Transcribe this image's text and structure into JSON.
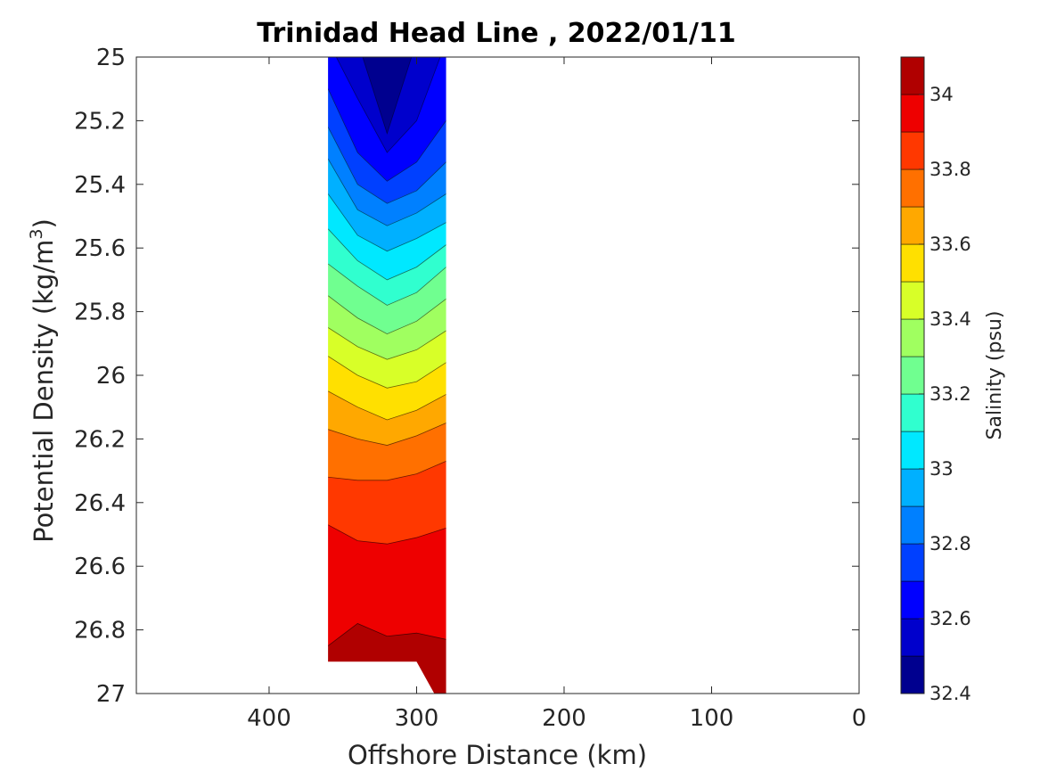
{
  "chart_data": {
    "type": "contour",
    "title": "Trinidad Head Line , 2022/01/11",
    "xlabel": "Offshore Distance (km)",
    "ylabel_main": "Potential Density (kg/m",
    "ylabel_sup": "3",
    "ylabel_close": ")",
    "xlim": [
      490,
      0
    ],
    "ylim": [
      25,
      27
    ],
    "x_reversed": true,
    "y_reversed": true,
    "x_ticks": [
      400,
      300,
      200,
      100,
      0
    ],
    "x_tick_labels": [
      "400",
      "300",
      "200",
      "100",
      "0"
    ],
    "y_ticks": [
      25,
      25.2,
      25.4,
      25.6,
      25.8,
      26,
      26.2,
      26.4,
      26.6,
      26.8,
      27
    ],
    "y_tick_labels": [
      "25",
      "25.2",
      "25.4",
      "25.6",
      "25.8",
      "26",
      "26.2",
      "26.4",
      "26.6",
      "26.8",
      "27"
    ],
    "grid": false,
    "colorbar": {
      "label": "Salinity (psu)",
      "range": [
        32.4,
        34.1
      ],
      "step": 0.1,
      "tick_values": [
        32.4,
        32.6,
        32.8,
        33,
        33.2,
        33.4,
        33.6,
        33.8,
        34
      ],
      "tick_labels": [
        "32.4",
        "32.6",
        "32.8",
        "33",
        "33.2",
        "33.4",
        "33.6",
        "33.8",
        "34"
      ],
      "colors": [
        "#00008f",
        "#0000cc",
        "#0000ff",
        "#0040ff",
        "#0080ff",
        "#00b0ff",
        "#00e8ff",
        "#30ffcf",
        "#70ff90",
        "#a0ff60",
        "#d8ff28",
        "#ffe000",
        "#ffa800",
        "#ff7000",
        "#ff3800",
        "#ee0000",
        "#b00000"
      ]
    },
    "section": {
      "x_range": [
        280,
        360
      ],
      "stations_x": [
        360,
        340,
        320,
        300,
        280
      ],
      "bottom_boundary": [
        [
          360,
          26.9
        ],
        [
          300,
          26.9
        ],
        [
          288,
          27
        ],
        [
          280,
          27
        ]
      ],
      "contours": [
        {
          "level": 32.5,
          "y": [
            24.95,
            24.95,
            25.24,
            24.95,
            24.95
          ]
        },
        {
          "level": 32.6,
          "y": [
            24.95,
            25.13,
            25.3,
            25.2,
            24.95
          ]
        },
        {
          "level": 32.7,
          "y": [
            25.1,
            25.3,
            25.39,
            25.33,
            25.2
          ]
        },
        {
          "level": 32.8,
          "y": [
            25.22,
            25.4,
            25.46,
            25.42,
            25.33
          ]
        },
        {
          "level": 32.9,
          "y": [
            25.32,
            25.48,
            25.53,
            25.49,
            25.43
          ]
        },
        {
          "level": 33.0,
          "y": [
            25.43,
            25.56,
            25.61,
            25.57,
            25.52
          ]
        },
        {
          "level": 33.1,
          "y": [
            25.54,
            25.64,
            25.7,
            25.66,
            25.59
          ]
        },
        {
          "level": 33.2,
          "y": [
            25.65,
            25.72,
            25.78,
            25.74,
            25.66
          ]
        },
        {
          "level": 33.3,
          "y": [
            25.75,
            25.82,
            25.87,
            25.83,
            25.76
          ]
        },
        {
          "level": 33.4,
          "y": [
            25.85,
            25.91,
            25.95,
            25.92,
            25.86
          ]
        },
        {
          "level": 33.5,
          "y": [
            25.94,
            26.0,
            26.04,
            26.02,
            25.96
          ]
        },
        {
          "level": 33.6,
          "y": [
            26.05,
            26.1,
            26.14,
            26.11,
            26.06
          ]
        },
        {
          "level": 33.7,
          "y": [
            26.17,
            26.2,
            26.22,
            26.19,
            26.15
          ]
        },
        {
          "level": 33.8,
          "y": [
            26.32,
            26.33,
            26.33,
            26.31,
            26.27
          ]
        },
        {
          "level": 33.9,
          "y": [
            26.47,
            26.52,
            26.53,
            26.51,
            26.48
          ]
        },
        {
          "level": 34.0,
          "y": [
            26.85,
            26.78,
            26.82,
            26.81,
            26.83
          ]
        }
      ]
    }
  }
}
